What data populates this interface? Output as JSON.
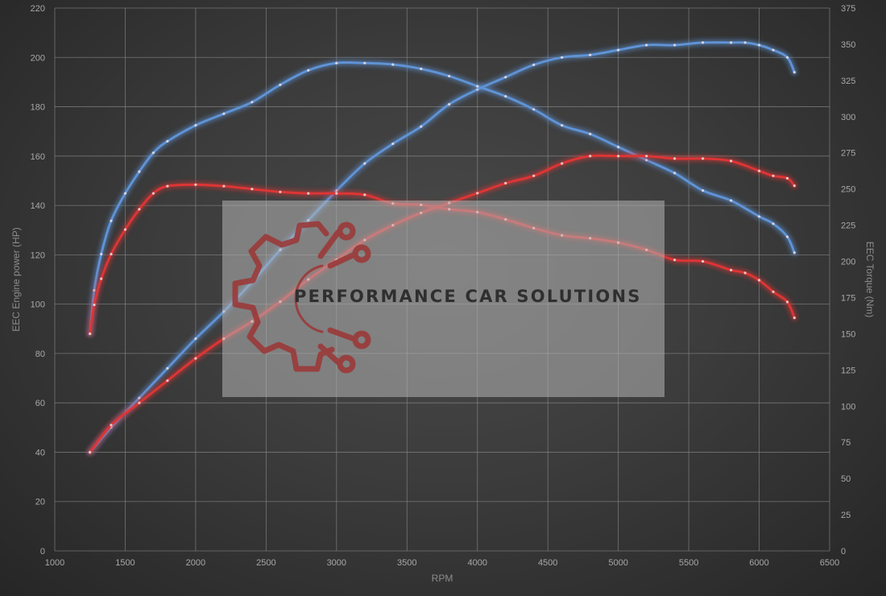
{
  "chart_data": {
    "type": "line",
    "xlabel": "RPM",
    "ylabel_left": "EEC Engine power (HP)",
    "ylabel_right": "EEC Torque (Nm)",
    "xlim": [
      1000,
      6500
    ],
    "ylim_left": [
      0,
      220
    ],
    "ylim_right": [
      0,
      375
    ],
    "x_ticks": [
      1000,
      1500,
      2000,
      2500,
      3000,
      3500,
      4000,
      4500,
      5000,
      5500,
      6000,
      6500
    ],
    "y_left_ticks": [
      0,
      20,
      40,
      60,
      80,
      100,
      120,
      140,
      160,
      180,
      200,
      220
    ],
    "y_right_ticks": [
      0,
      25,
      50,
      75,
      100,
      125,
      150,
      175,
      200,
      225,
      250,
      275,
      300,
      325,
      350,
      375
    ],
    "grid": true,
    "legend": "none",
    "series": [
      {
        "color": "#5f93d6",
        "axis": "left",
        "x": [
          1250,
          1400,
          1600,
          1800,
          2000,
          2200,
          2400,
          2600,
          2800,
          3000,
          3200,
          3400,
          3600,
          3800,
          4000,
          4200,
          4400,
          4600,
          4800,
          5000,
          5200,
          5400,
          5600,
          5800,
          5900,
          6000,
          6100,
          6200,
          6250
        ],
        "values": [
          40,
          50,
          62,
          74,
          86,
          97,
          109,
          122,
          134,
          146,
          157,
          165,
          172,
          181,
          187,
          192,
          197,
          200,
          201,
          203,
          205,
          205,
          206,
          206,
          206,
          205,
          203,
          200,
          194
        ]
      },
      {
        "color": "#5f93d6",
        "axis": "right",
        "x": [
          1250,
          1280,
          1330,
          1400,
          1500,
          1600,
          1700,
          1800,
          2000,
          2200,
          2400,
          2600,
          2800,
          3000,
          3200,
          3400,
          3600,
          3800,
          4000,
          4200,
          4400,
          4600,
          4800,
          5000,
          5200,
          5400,
          5600,
          5800,
          6000,
          6100,
          6200,
          6250
        ],
        "values": [
          150,
          180,
          205,
          228,
          247,
          262,
          275,
          283,
          294,
          302,
          310,
          322,
          332,
          337,
          337,
          336,
          333,
          328,
          321,
          314,
          305,
          294,
          288,
          279,
          270,
          261,
          249,
          242,
          231,
          226,
          217,
          206
        ]
      },
      {
        "color": "#dd3535",
        "axis": "left",
        "x": [
          1250,
          1400,
          1600,
          1800,
          2000,
          2200,
          2400,
          2600,
          2800,
          3000,
          3200,
          3400,
          3600,
          3800,
          4000,
          4200,
          4400,
          4600,
          4800,
          5000,
          5200,
          5400,
          5600,
          5800,
          6000,
          6100,
          6200,
          6250
        ],
        "values": [
          40,
          51,
          60,
          69,
          78,
          86,
          93,
          101,
          110,
          118,
          126,
          132,
          137,
          141,
          145,
          149,
          152,
          157,
          160,
          160,
          160,
          159,
          159,
          158,
          154,
          152,
          151,
          148
        ]
      },
      {
        "color": "#dd3535",
        "axis": "right",
        "x": [
          1250,
          1280,
          1330,
          1400,
          1500,
          1600,
          1700,
          1800,
          2000,
          2200,
          2400,
          2600,
          2800,
          3000,
          3200,
          3400,
          3600,
          3800,
          4000,
          4200,
          4400,
          4600,
          4800,
          5000,
          5200,
          5400,
          5600,
          5800,
          5900,
          6000,
          6100,
          6200,
          6250
        ],
        "values": [
          150,
          170,
          188,
          205,
          222,
          236,
          247,
          252,
          253,
          252,
          250,
          248,
          247,
          247,
          246,
          240,
          239,
          236,
          234,
          229,
          223,
          218,
          216,
          213,
          208,
          201,
          200,
          194,
          192,
          187,
          179,
          172,
          161
        ]
      }
    ]
  },
  "watermark": {
    "text": "PERFORMANCE CAR SOLUTIONS",
    "logo_icon": "gear-circuit-logo-icon"
  }
}
